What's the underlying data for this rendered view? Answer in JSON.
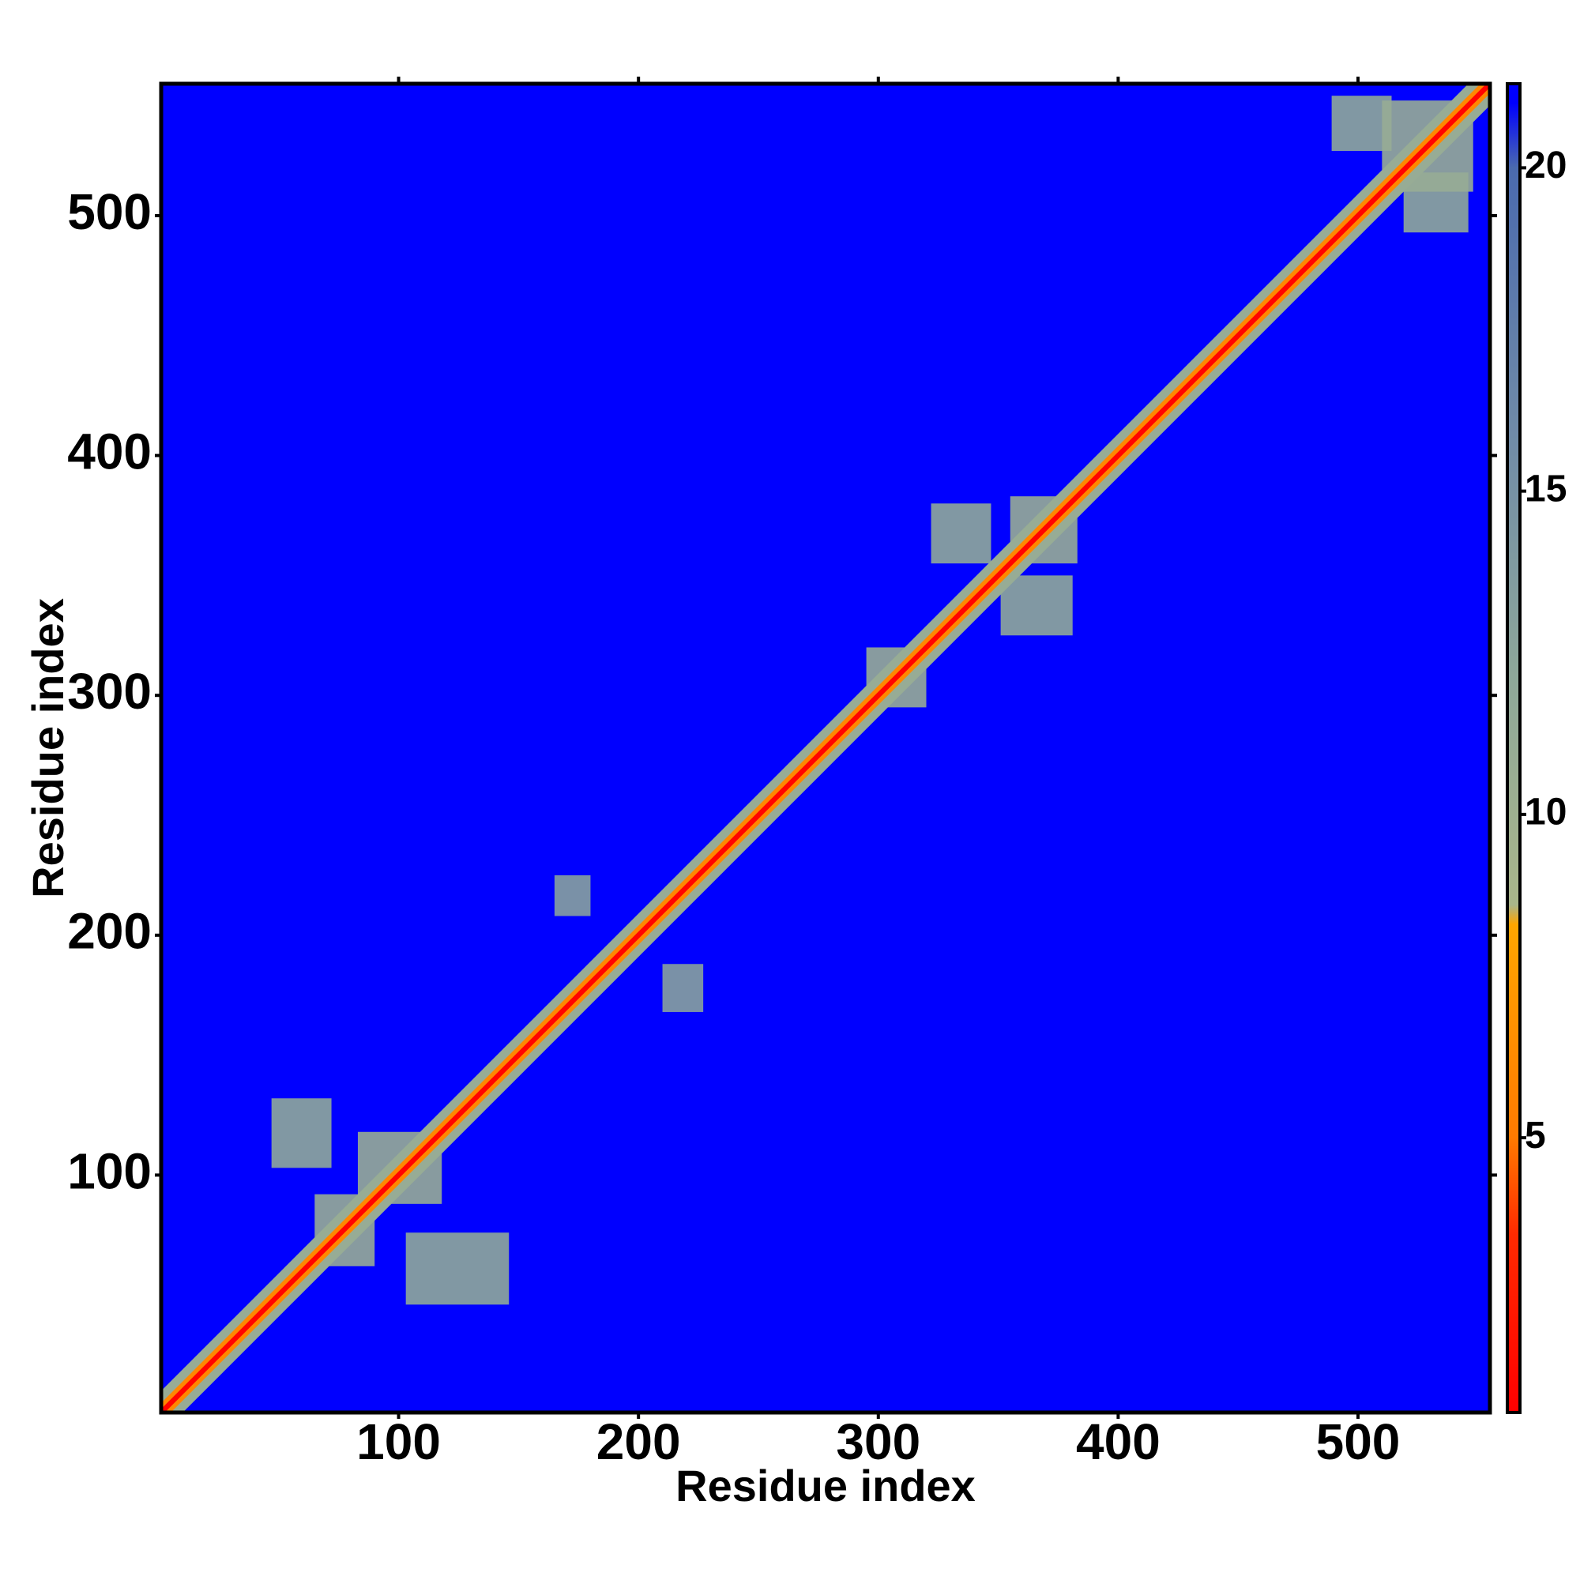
{
  "chart_data": {
    "type": "heatmap",
    "xlabel": "Residue index",
    "ylabel": "Residue index",
    "xlim": [
      1,
      555
    ],
    "ylim": [
      1,
      555
    ],
    "xticks": [
      100,
      200,
      300,
      400,
      500
    ],
    "yticks": [
      100,
      200,
      300,
      400,
      500
    ],
    "zlim": [
      0.75,
      21.3
    ],
    "zticks": [
      5,
      10,
      15,
      20
    ],
    "colorscale": [
      [
        0.75,
        "#ff0000"
      ],
      [
        3.5,
        "#ff2a00"
      ],
      [
        5,
        "#ff7a00"
      ],
      [
        8.3,
        "#ffa500"
      ],
      [
        8.6,
        "#a9b58a"
      ],
      [
        12,
        "#8fa899"
      ],
      [
        16,
        "#6f8aa8"
      ],
      [
        20,
        "#4a6aae"
      ],
      [
        21,
        "#0000ff"
      ]
    ],
    "background": 21.3,
    "regions": [
      {
        "x": [
          47,
          72
        ],
        "y": [
          103,
          132
        ],
        "value": 12
      },
      {
        "x": [
          65,
          90
        ],
        "y": [
          62,
          92
        ],
        "value": 11
      },
      {
        "x": [
          103,
          146
        ],
        "y": [
          46,
          76
        ],
        "value": 12
      },
      {
        "x": [
          83,
          118
        ],
        "y": [
          88,
          118
        ],
        "value": 11
      },
      {
        "x": [
          165,
          180
        ],
        "y": [
          208,
          225
        ],
        "value": 13
      },
      {
        "x": [
          210,
          227
        ],
        "y": [
          168,
          188
        ],
        "value": 13
      },
      {
        "x": [
          295,
          320
        ],
        "y": [
          295,
          320
        ],
        "value": 11
      },
      {
        "x": [
          322,
          347
        ],
        "y": [
          355,
          380
        ],
        "value": 12
      },
      {
        "x": [
          351,
          381
        ],
        "y": [
          325,
          350
        ],
        "value": 12
      },
      {
        "x": [
          355,
          383
        ],
        "y": [
          355,
          383
        ],
        "value": 11
      },
      {
        "x": [
          489,
          514
        ],
        "y": [
          527,
          550
        ],
        "value": 12
      },
      {
        "x": [
          519,
          546
        ],
        "y": [
          493,
          518
        ],
        "value": 12
      },
      {
        "x": [
          510,
          548
        ],
        "y": [
          510,
          548
        ],
        "value": 11
      }
    ],
    "diagonal": [
      {
        "halfwidth": 9,
        "value": 11
      },
      {
        "halfwidth": 4,
        "value": 6
      },
      {
        "halfwidth": 1.5,
        "value": 1
      }
    ]
  }
}
